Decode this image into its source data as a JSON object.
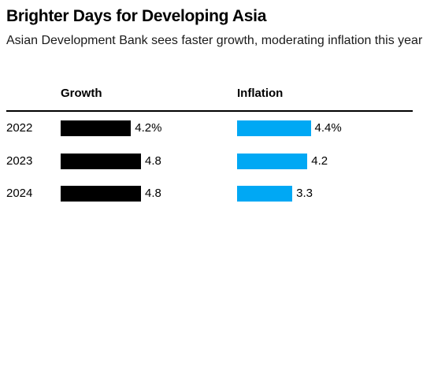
{
  "title": "Brighter Days for Developing Asia",
  "subtitle": "Asian Development Bank sees faster growth, moderating inflation this year",
  "colors": {
    "growth": "#000000",
    "inflation": "#00a8f4"
  },
  "chart_data": {
    "type": "bar",
    "orientation": "horizontal",
    "categories": [
      "2022",
      "2023",
      "2024"
    ],
    "series": [
      {
        "name": "Growth",
        "values": [
          4.2,
          4.8,
          4.8
        ],
        "labels": [
          "4.2%",
          "4.8",
          "4.8"
        ]
      },
      {
        "name": "Inflation",
        "values": [
          4.4,
          4.2,
          3.3
        ],
        "labels": [
          "4.4%",
          "4.2",
          "3.3"
        ]
      }
    ],
    "grid": false,
    "legend": "none"
  }
}
